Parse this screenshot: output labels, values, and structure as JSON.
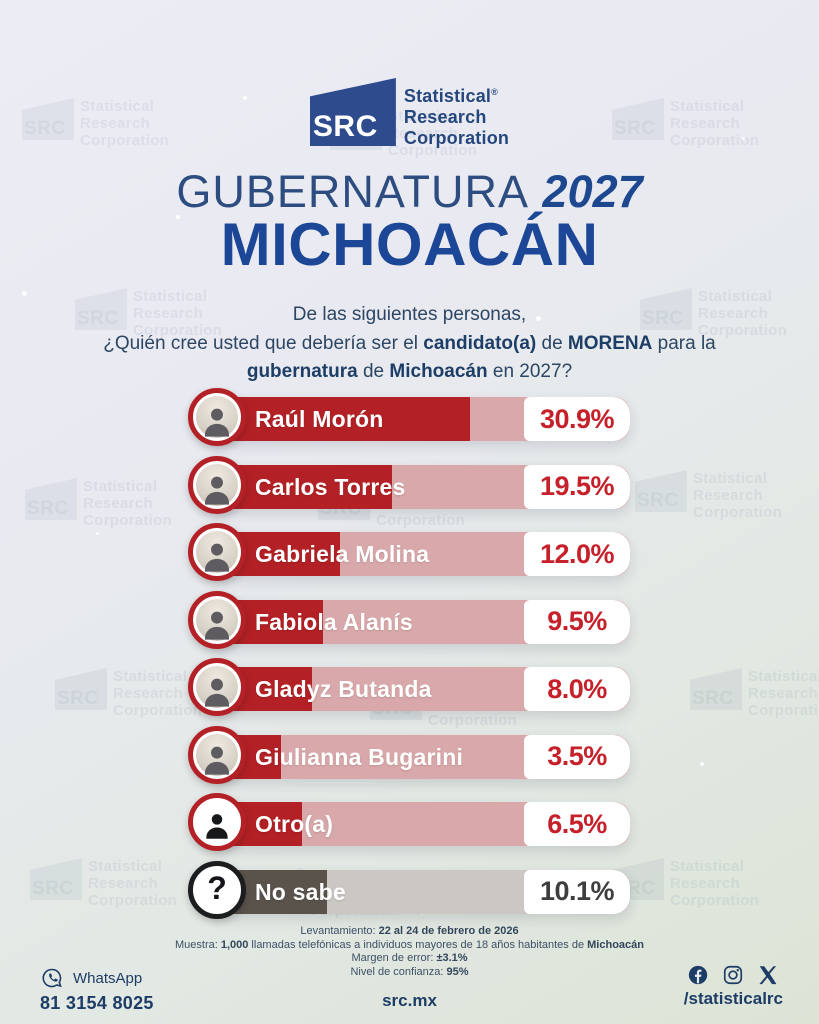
{
  "brand": {
    "logo_acronym": "SRC",
    "logo_lines": [
      "Statistical",
      "Research",
      "Corporation"
    ],
    "registered_mark": "®"
  },
  "header": {
    "title_light": "GUBERNATURA",
    "title_year": "2027",
    "state": "MICHOACÁN"
  },
  "question": {
    "line1": "De las siguientes personas,",
    "line2": [
      {
        "t": "¿Quién cree usted que debería ser el "
      },
      {
        "t": "candidato(a)",
        "b": true
      },
      {
        "t": " de "
      },
      {
        "t": "MORENA",
        "b": true
      },
      {
        "t": " para la"
      }
    ],
    "line3": [
      {
        "t": "gubernatura",
        "b": true
      },
      {
        "t": " de "
      },
      {
        "t": "Michoacán",
        "b": true
      },
      {
        "t": " en 2027?"
      }
    ]
  },
  "chart_data": {
    "type": "bar",
    "orientation": "horizontal",
    "title": "¿Quién cree usted que debería ser el candidato(a) de MORENA para la gubernatura de Michoacán en 2027?",
    "unit": "%",
    "categories": [
      "Raúl Morón",
      "Carlos Torres",
      "Gabriela Molina",
      "Fabiola Alanís",
      "Gladyz Butanda",
      "Giulianna Bugarini",
      "Otro(a)",
      "No sabe"
    ],
    "values": [
      30.9,
      19.5,
      12.0,
      9.5,
      8.0,
      3.5,
      6.5,
      10.1
    ],
    "rows": [
      {
        "name": "Raúl Morón",
        "value": 30.9,
        "label": "30.9%",
        "theme": "red",
        "icon": "photo"
      },
      {
        "name": "Carlos Torres",
        "value": 19.5,
        "label": "19.5%",
        "theme": "red",
        "icon": "photo"
      },
      {
        "name": "Gabriela Molina",
        "value": 12.0,
        "label": "12.0%",
        "theme": "red",
        "icon": "photo"
      },
      {
        "name": "Fabiola Alanís",
        "value": 9.5,
        "label": "9.5%",
        "theme": "red",
        "icon": "photo"
      },
      {
        "name": "Gladyz Butanda",
        "value": 8.0,
        "label": "8.0%",
        "theme": "red",
        "icon": "photo"
      },
      {
        "name": "Giulianna Bugarini",
        "value": 3.5,
        "label": "3.5%",
        "theme": "red",
        "icon": "photo"
      },
      {
        "name": "Otro(a)",
        "value": 6.5,
        "label": "6.5%",
        "theme": "red",
        "icon": "person"
      },
      {
        "name": "No sabe",
        "value": 10.1,
        "label": "10.1%",
        "theme": "gray",
        "icon": "question"
      }
    ],
    "colors": {
      "bar_fill_red": "#b32126",
      "bar_track_red": "#d9a8aa",
      "pct_red": "#c6202a",
      "bar_fill_gray": "#5a534c",
      "bar_track_gray": "#cbc7c2",
      "pct_gray": "#3e3e40",
      "title_blue": "#1c4796",
      "navy": "#1d3c66"
    }
  },
  "methodology": {
    "line1": [
      {
        "t": "Levantamiento: "
      },
      {
        "t": "22 al 24 de febrero de 2026",
        "b": true
      }
    ],
    "line2": [
      {
        "t": "Muestra: "
      },
      {
        "t": "1,000",
        "b": true
      },
      {
        "t": " llamadas telefónicas a individuos mayores de 18 años habitantes de "
      },
      {
        "t": "Michoacán",
        "b": true
      }
    ],
    "line3": [
      {
        "t": "Margen de error: "
      },
      {
        "t": "±3.1%",
        "b": true
      }
    ],
    "line4": [
      {
        "t": "Nivel de confianza: "
      },
      {
        "t": "95%",
        "b": true
      }
    ]
  },
  "footer": {
    "whatsapp_label": "WhatsApp",
    "whatsapp_number": "81 3154 8025",
    "website": "src.mx",
    "social_handle": "/statisticalrc",
    "social_icons": [
      "facebook-icon",
      "instagram-icon",
      "x-icon"
    ]
  },
  "watermark": {
    "acronym": "SRC",
    "lines": [
      "Statistical",
      "Research",
      "Corporation"
    ]
  }
}
